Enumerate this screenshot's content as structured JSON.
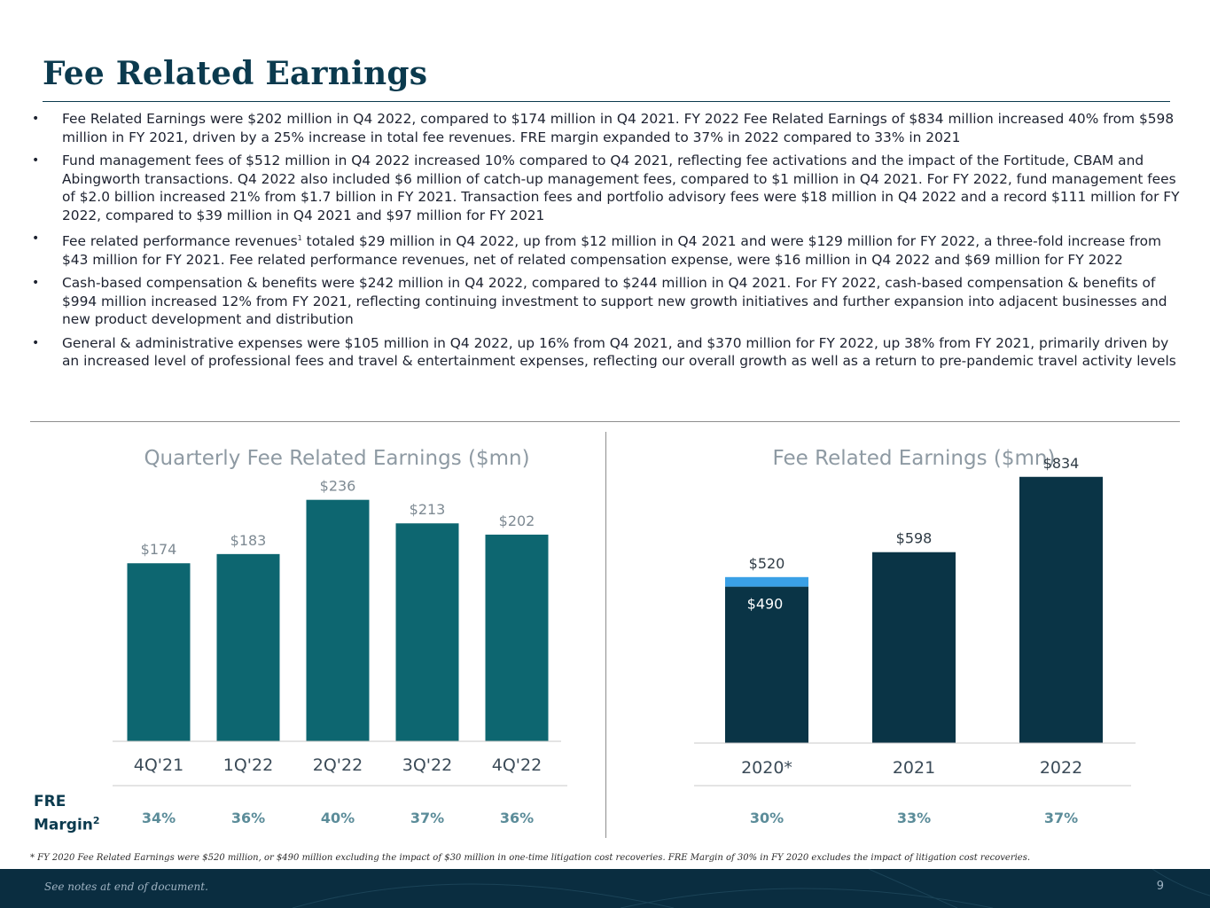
{
  "page": {
    "title": "Fee Related Earnings",
    "page_number": "9",
    "footer_note": "See notes at end of document.",
    "footnote": "* FY 2020 Fee Related Earnings were $520 million, or $490 million excluding the impact of $30 million in one-time litigation cost recoveries. FRE Margin of 30% in FY 2020 excludes the impact of litigation cost recoveries.",
    "fre_margin_label": "FRE",
    "fre_margin_label_2": "Margin",
    "fre_margin_sup": "2"
  },
  "bullets": [
    {
      "text": "Fee Related Earnings were $202 million in Q4 2022, compared to $174 million in Q4 2021. FY 2022 Fee Related Earnings of $834 million increased 40% from $598 million in FY 2021, driven by a 25% increase in total fee revenues. FRE margin expanded to 37% in 2022 compared to 33% in 2021"
    },
    {
      "text": "Fund management fees of $512 million in Q4 2022 increased 10% compared to Q4 2021, reflecting fee activations and the impact of the Fortitude, CBAM and Abingworth transactions. Q4 2022 also included $6 million of catch-up management fees, compared to $1 million in Q4 2021. For FY 2022, fund management fees of $2.0 billion increased 21% from $1.7 billion in FY 2021. Transaction fees and portfolio advisory fees were $18 million in Q4 2022 and a record $111 million for FY 2022, compared to $39 million in Q4 2021 and $97 million for FY 2021"
    },
    {
      "text_a": "Fee related performance revenues",
      "sup": "1",
      "text_b": " totaled $29 million in Q4 2022, up from $12 million in Q4 2021 and were $129 million for FY 2022, a three-fold increase from $43 million for FY 2021. Fee related performance revenues, net of related compensation expense, were $16 million in Q4 2022 and $69 million for FY 2022"
    },
    {
      "text": "Cash-based compensation & benefits were $242 million in Q4 2022, compared to $244 million in Q4 2021. For FY 2022, cash-based compensation & benefits of $994 million increased 12% from FY 2021, reflecting continuing investment to support new growth initiatives and further expansion into adjacent businesses and new product development and distribution"
    },
    {
      "text": "General & administrative expenses were $105 million in Q4 2022, up 16% from Q4 2021, and $370 million for FY 2022, up 38% from FY 2021, primarily driven by an increased level of professional fees and travel & entertainment expenses, reflecting our overall growth as well as a return to pre-pandemic travel activity levels"
    }
  ],
  "colors": {
    "title": "#0b3a4e",
    "quarterly_bar": "#0d6670",
    "annual_bar": "#0a3446",
    "litigation_segment": "#3aa0e6",
    "margin_text": "#5b8c99",
    "axis_label": "#3b4b58",
    "data_label_light": "#7e8a93"
  },
  "chart_data": [
    {
      "type": "bar",
      "title": "Quarterly Fee Related Earnings ($mn)",
      "categories": [
        "4Q'21",
        "1Q'22",
        "2Q'22",
        "3Q'22",
        "4Q'22"
      ],
      "values": [
        174,
        183,
        236,
        213,
        202
      ],
      "value_labels": [
        "$174",
        "$183",
        "$236",
        "$213",
        "$202"
      ],
      "fre_margin": [
        "34%",
        "36%",
        "40%",
        "37%",
        "36%"
      ],
      "ylim": [
        0,
        260
      ],
      "grid": false,
      "legend": "none"
    },
    {
      "type": "bar",
      "title": "Fee Related Earnings ($mn)",
      "categories": [
        "2020*",
        "2021",
        "2022"
      ],
      "values": [
        520,
        598,
        834
      ],
      "base_values": [
        490,
        598,
        834
      ],
      "value_labels": [
        "$520",
        "$598",
        "$834"
      ],
      "base_label": "$490",
      "fre_margin": [
        "30%",
        "33%",
        "37%"
      ],
      "ylim": [
        0,
        900
      ],
      "grid": false,
      "legend": "none"
    }
  ]
}
